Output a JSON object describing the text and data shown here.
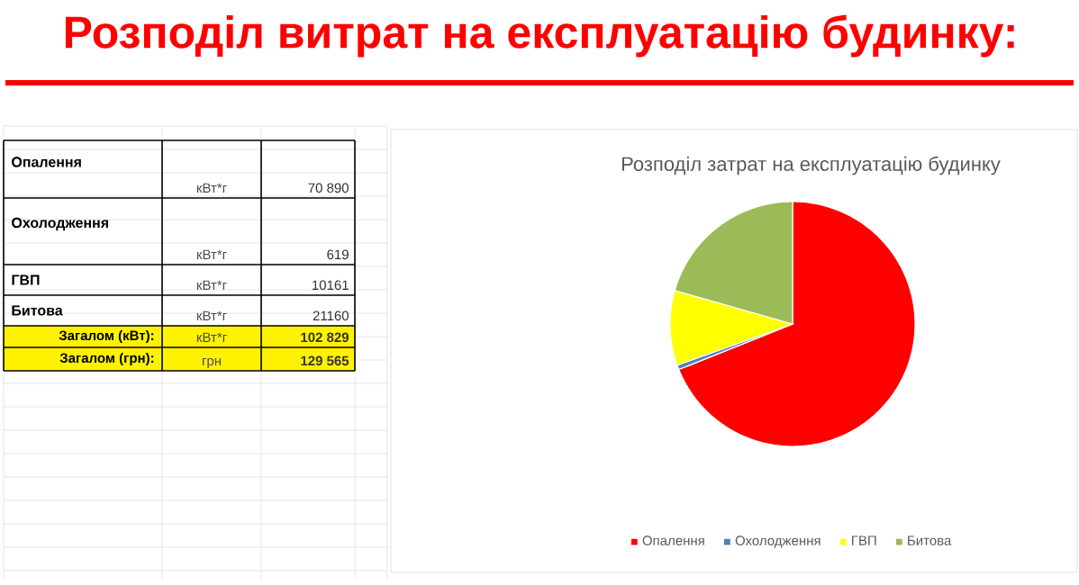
{
  "chart_data": [
    {
      "type": "other",
      "title": "Розподіл витрат на експлуатацію будинку:",
      "annotations": [
        "Опалення",
        "кВт*г",
        "70 890",
        "Охолодження",
        "кВт*г",
        "619",
        "ГВП",
        "кВт*г",
        "10161",
        "Битова",
        "кВт*г",
        "21160",
        "Загалом (кВт):",
        "кВт*г",
        "102 829",
        "Загалом (грн):",
        "грн",
        "129 565"
      ]
    },
    {
      "type": "pie",
      "title": "Розподіл затрат на експлуатацію будинку",
      "categories": [
        "Опалення",
        "Охолодження",
        "ГВП",
        "Битова"
      ],
      "values": [
        68.94,
        0.6,
        9.88,
        20.58
      ],
      "colors": [
        "#ff0000",
        "#4f81bd",
        "#ffff00",
        "#9bbb59"
      ],
      "legend": "bottom"
    }
  ]
}
